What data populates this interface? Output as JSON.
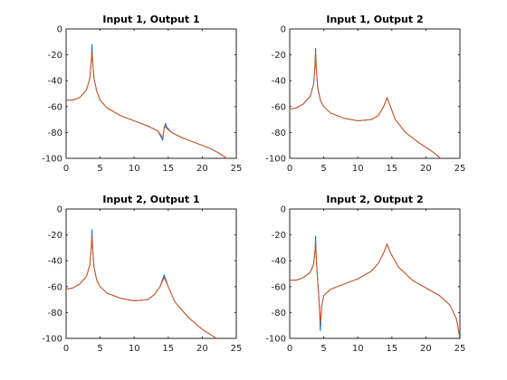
{
  "chart_data": [
    {
      "type": "line",
      "title": "Input 1, Output 1",
      "xlim": [
        0,
        25
      ],
      "ylim": [
        -100,
        0
      ],
      "xticks": [
        0,
        5,
        10,
        15,
        20,
        25
      ],
      "yticks": [
        -100,
        -80,
        -60,
        -40,
        -20,
        0
      ],
      "xticklabels": [
        "0",
        "5",
        "10",
        "15",
        "20",
        "25"
      ],
      "yticklabels": [
        "-100",
        "-80",
        "-60",
        "-40",
        "-20",
        "0"
      ],
      "grid": false,
      "series": [
        {
          "color": "#0072BD",
          "x": [
            0,
            1,
            2,
            3,
            3.5,
            3.7,
            3.8,
            3.9,
            4.1,
            4.5,
            5,
            6,
            8,
            10,
            12,
            13.5,
            14.2,
            14.4,
            14.6,
            14.8,
            15.5,
            17,
            19,
            21,
            22.5,
            23.6
          ],
          "y": [
            -55,
            -55,
            -53,
            -47,
            -38,
            -25,
            -12,
            -25,
            -38,
            -48,
            -55,
            -61,
            -67,
            -71,
            -75,
            -79,
            -86,
            -76,
            -73,
            -76,
            -80,
            -84,
            -88,
            -92,
            -96,
            -100
          ]
        },
        {
          "color": "#D95319",
          "x": [
            0,
            1,
            2,
            3,
            3.5,
            3.7,
            3.8,
            3.9,
            4.1,
            4.5,
            5,
            6,
            8,
            10,
            12,
            13.5,
            14.2,
            14.4,
            14.6,
            14.8,
            15.5,
            17,
            19,
            21,
            22.5,
            23.6
          ],
          "y": [
            -55,
            -55,
            -53,
            -47,
            -38,
            -25,
            -17,
            -25,
            -38,
            -48,
            -55,
            -61,
            -67,
            -71,
            -75,
            -79,
            -84,
            -77,
            -75,
            -77,
            -80,
            -84,
            -88,
            -92,
            -96,
            -100
          ]
        }
      ]
    },
    {
      "type": "line",
      "title": "Input 1, Output 2",
      "xlim": [
        0,
        25
      ],
      "ylim": [
        -100,
        0
      ],
      "xticks": [
        0,
        5,
        10,
        15,
        20,
        25
      ],
      "yticks": [
        -100,
        -80,
        -60,
        -40,
        -20,
        0
      ],
      "xticklabels": [
        "0",
        "5",
        "10",
        "15",
        "20",
        "25"
      ],
      "yticklabels": [
        "-100",
        "-80",
        "-60",
        "-40",
        "-20",
        "0"
      ],
      "grid": false,
      "series": [
        {
          "color": "#0072BD",
          "x": [
            0,
            1,
            2,
            3,
            3.5,
            3.7,
            3.8,
            3.9,
            4.1,
            4.5,
            5,
            6,
            8,
            10,
            12,
            13,
            13.8,
            14.3,
            14.8,
            15.5,
            17,
            19,
            21,
            22.2
          ],
          "y": [
            -62,
            -61,
            -58,
            -52,
            -43,
            -30,
            -15,
            -30,
            -45,
            -55,
            -60,
            -65,
            -69,
            -71,
            -70,
            -67,
            -60,
            -53,
            -60,
            -70,
            -80,
            -88,
            -95,
            -100
          ]
        },
        {
          "color": "#D95319",
          "x": [
            0,
            1,
            2,
            3,
            3.5,
            3.7,
            3.8,
            3.9,
            4.1,
            4.5,
            5,
            6,
            8,
            10,
            12,
            13,
            13.8,
            14.3,
            14.8,
            15.5,
            17,
            19,
            21,
            22.2
          ],
          "y": [
            -62,
            -61,
            -58,
            -52,
            -43,
            -30,
            -18,
            -30,
            -45,
            -55,
            -60,
            -65,
            -69,
            -71,
            -70,
            -67,
            -60,
            -53,
            -60,
            -70,
            -80,
            -88,
            -95,
            -100
          ]
        }
      ]
    },
    {
      "type": "line",
      "title": "Input 2, Output 1",
      "xlim": [
        0,
        25
      ],
      "ylim": [
        -100,
        0
      ],
      "xticks": [
        0,
        5,
        10,
        15,
        20,
        25
      ],
      "yticks": [
        -100,
        -80,
        -60,
        -40,
        -20,
        0
      ],
      "xticklabels": [
        "0",
        "5",
        "10",
        "15",
        "20",
        "25"
      ],
      "yticklabels": [
        "-100",
        "-80",
        "-60",
        "-40",
        "-20",
        "0"
      ],
      "grid": false,
      "series": [
        {
          "color": "#0072BD",
          "x": [
            0,
            1,
            2,
            3,
            3.5,
            3.7,
            3.8,
            3.9,
            4.1,
            4.5,
            5,
            6,
            8,
            10,
            12,
            13,
            13.8,
            14.4,
            15,
            16,
            18,
            20,
            22.1
          ],
          "y": [
            -62,
            -61,
            -58,
            -52,
            -43,
            -30,
            -16,
            -30,
            -45,
            -55,
            -60,
            -65,
            -69,
            -71,
            -70,
            -66,
            -60,
            -51,
            -60,
            -72,
            -84,
            -93,
            -100
          ]
        },
        {
          "color": "#D95319",
          "x": [
            0,
            1,
            2,
            3,
            3.5,
            3.7,
            3.8,
            3.9,
            4.1,
            4.5,
            5,
            6,
            8,
            10,
            12,
            13,
            13.8,
            14.4,
            15,
            16,
            18,
            20,
            22.1
          ],
          "y": [
            -62,
            -61,
            -58,
            -52,
            -43,
            -30,
            -20,
            -30,
            -45,
            -55,
            -60,
            -65,
            -69,
            -71,
            -70,
            -66,
            -60,
            -53,
            -60,
            -72,
            -84,
            -93,
            -100
          ]
        }
      ]
    },
    {
      "type": "line",
      "title": "Input 2, Output 2",
      "xlim": [
        0,
        25
      ],
      "ylim": [
        -100,
        0
      ],
      "xticks": [
        0,
        5,
        10,
        15,
        20,
        25
      ],
      "yticks": [
        -100,
        -80,
        -60,
        -40,
        -20,
        0
      ],
      "xticklabels": [
        "0",
        "5",
        "10",
        "15",
        "20",
        "25"
      ],
      "yticklabels": [
        "-100",
        "-80",
        "-60",
        "-40",
        "-20",
        "0"
      ],
      "grid": false,
      "series": [
        {
          "color": "#0072BD",
          "x": [
            0,
            1,
            2,
            3,
            3.5,
            3.7,
            3.8,
            3.9,
            4.1,
            4.3,
            4.5,
            4.7,
            5,
            6,
            8,
            10,
            12,
            13,
            13.8,
            14.3,
            14.8,
            16,
            18,
            20,
            22,
            23.5,
            24.5,
            25
          ],
          "y": [
            -55,
            -55,
            -53,
            -49,
            -43,
            -33,
            -21,
            -38,
            -55,
            -70,
            -94,
            -75,
            -67,
            -62,
            -58,
            -54,
            -48,
            -42,
            -34,
            -27,
            -34,
            -45,
            -55,
            -61,
            -67,
            -74,
            -85,
            -100
          ]
        },
        {
          "color": "#D95319",
          "x": [
            0,
            1,
            2,
            3,
            3.5,
            3.7,
            3.8,
            3.9,
            4.1,
            4.3,
            4.5,
            4.7,
            5,
            6,
            8,
            10,
            12,
            13,
            13.8,
            14.3,
            14.8,
            16,
            18,
            20,
            22,
            23.5,
            24.5,
            25
          ],
          "y": [
            -55,
            -55,
            -53,
            -49,
            -43,
            -33,
            -25,
            -38,
            -55,
            -70,
            -88,
            -75,
            -67,
            -62,
            -58,
            -54,
            -48,
            -42,
            -34,
            -27,
            -34,
            -45,
            -55,
            -61,
            -67,
            -74,
            -85,
            -100
          ]
        }
      ]
    }
  ]
}
